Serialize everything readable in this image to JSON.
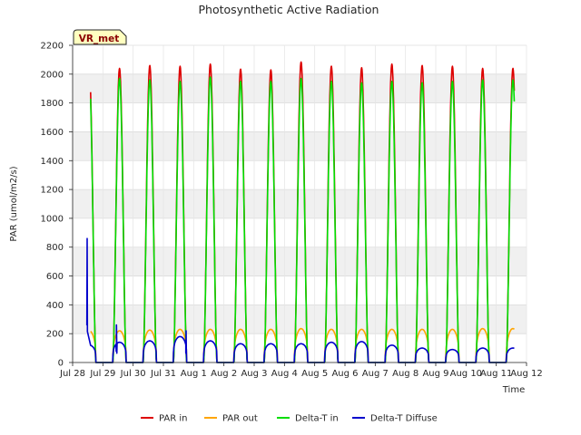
{
  "chart_data": {
    "type": "line",
    "title": "Photosynthetic Active Radiation",
    "xlabel": "Time",
    "ylabel": "PAR (umol/m2/s)",
    "site_badge": "VR_met",
    "ylim": [
      0,
      2200
    ],
    "xlim": [
      0,
      15
    ],
    "yticks": [
      "0",
      "200",
      "400",
      "600",
      "800",
      "1000",
      "1200",
      "1400",
      "1600",
      "1800",
      "2000",
      "2200"
    ],
    "xticks": [
      "Jul 28",
      "Jul 29",
      "Jul 30",
      "Jul 31",
      "Aug 1",
      "Aug 2",
      "Aug 3",
      "Aug 4",
      "Aug 5",
      "Aug 6",
      "Aug 7",
      "Aug 8",
      "Aug 9",
      "Aug 10",
      "Aug 11",
      "Aug 12"
    ],
    "grid": true,
    "legend_position": "bottom",
    "series": [
      {
        "name": "PAR in",
        "color": "#dd0000",
        "daily_peaks": [
          2030,
          2040,
          2060,
          2055,
          2070,
          2035,
          2030,
          2085,
          2055,
          2045,
          2070,
          2060,
          2055,
          2040
        ],
        "time_range": [
          0.6,
          14.6
        ]
      },
      {
        "name": "PAR out",
        "color": "#ffa500",
        "daily_peaks": [
          220,
          220,
          225,
          230,
          230,
          230,
          230,
          235,
          230,
          230,
          230,
          230,
          230,
          235
        ],
        "time_range": [
          0.6,
          14.6
        ]
      },
      {
        "name": "Delta-T in",
        "color": "#00dd00",
        "daily_peaks": [
          1980,
          1970,
          1960,
          1950,
          1980,
          1950,
          1950,
          1970,
          1950,
          1940,
          1950,
          1940,
          1950,
          1960
        ],
        "time_range": [
          0.6,
          14.6
        ]
      },
      {
        "name": "Delta-T Diffuse",
        "color": "#0000cc",
        "daily_peaks": [
          120,
          140,
          150,
          180,
          150,
          130,
          130,
          130,
          140,
          145,
          120,
          100,
          90,
          100
        ],
        "spikes": [
          {
            "x": 0.48,
            "y": 860
          },
          {
            "x": 1.45,
            "y": 260
          },
          {
            "x": 3.75,
            "y": 220
          }
        ],
        "time_range": [
          0.6,
          14.6
        ]
      }
    ]
  }
}
